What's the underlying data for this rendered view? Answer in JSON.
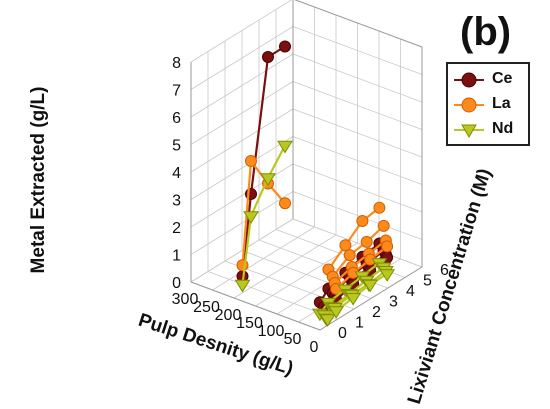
{
  "panel_label": "(b)",
  "chart_data": {
    "type": "scatter3d",
    "xlabel": "Pulp Desnity (g/L)",
    "ylabel": "Lixiviant Concentration (M)",
    "zlabel": "Metal Extracted (g/L)",
    "xlim": [
      0,
      300
    ],
    "ylim": [
      0,
      6
    ],
    "zlim": [
      0,
      8
    ],
    "xticks": [
      300,
      250,
      200,
      150,
      100,
      50,
      0
    ],
    "yticks": [
      0,
      1,
      2,
      3,
      4,
      5,
      6
    ],
    "zticks": [
      0,
      1,
      2,
      3,
      4,
      5,
      6,
      7,
      8
    ],
    "legend_position": "top-right",
    "series": [
      {
        "name": "Ce",
        "color": "#7a1010",
        "marker": "circle",
        "lines": [
          [
            [
              200,
              0.5,
              0.6
            ],
            [
              200,
              1,
              3.4
            ],
            [
              200,
              2,
              8.0
            ],
            [
              200,
              3,
              8.0
            ]
          ],
          [
            [
              20,
              0.5,
              0.7
            ],
            [
              20,
              1,
              1.0
            ],
            [
              20,
              2,
              1.2
            ],
            [
              20,
              3,
              1.4
            ],
            [
              20,
              4,
              1.5
            ]
          ],
          [
            [
              10,
              0.5,
              0.6
            ],
            [
              10,
              1,
              0.9
            ],
            [
              10,
              2,
              1.1
            ],
            [
              10,
              3,
              1.2
            ],
            [
              10,
              4,
              1.3
            ]
          ],
          [
            [
              5,
              0.5,
              0.5
            ],
            [
              5,
              1,
              0.8
            ],
            [
              5,
              2,
              1.0
            ],
            [
              5,
              3,
              1.1
            ],
            [
              5,
              4,
              1.2
            ]
          ],
          [
            [
              2,
              0.5,
              0.5
            ],
            [
              2,
              1,
              0.7
            ],
            [
              2,
              2,
              0.9
            ],
            [
              2,
              3,
              1.0
            ],
            [
              2,
              4,
              1.1
            ]
          ]
        ]
      },
      {
        "name": "La",
        "color": "#ff8a1c",
        "marker": "circle",
        "lines": [
          [
            [
              200,
              0.5,
              1.0
            ],
            [
              200,
              1,
              4.6
            ],
            [
              200,
              2,
              3.4
            ],
            [
              200,
              3,
              2.3
            ]
          ],
          [
            [
              20,
              1,
              1.7
            ],
            [
              20,
              2,
              2.2
            ],
            [
              20,
              3,
              2.7
            ],
            [
              20,
              4,
              2.8
            ]
          ],
          [
            [
              10,
              1,
              1.5
            ],
            [
              10,
              2,
              1.9
            ],
            [
              10,
              3,
              2.0
            ],
            [
              10,
              4,
              2.2
            ]
          ],
          [
            [
              5,
              1,
              1.3
            ],
            [
              5,
              2,
              1.5
            ],
            [
              5,
              3,
              1.6
            ],
            [
              5,
              4,
              1.7
            ]
          ],
          [
            [
              2,
              1,
              1.1
            ],
            [
              2,
              2,
              1.3
            ],
            [
              2,
              3,
              1.4
            ],
            [
              2,
              4,
              1.5
            ]
          ]
        ]
      },
      {
        "name": "Nd",
        "color": "#b8c820",
        "marker": "triangle-down",
        "lines": [
          [
            [
              200,
              0.5,
              0.3
            ],
            [
              200,
              1,
              2.6
            ],
            [
              200,
              2,
              3.6
            ],
            [
              200,
              3,
              4.4
            ]
          ],
          [
            [
              20,
              0.5,
              0.3
            ],
            [
              20,
              1,
              0.5
            ],
            [
              20,
              2,
              0.6
            ],
            [
              20,
              3,
              0.7
            ],
            [
              20,
              4,
              0.8
            ]
          ],
          [
            [
              10,
              0.5,
              0.3
            ],
            [
              10,
              1,
              0.4
            ],
            [
              10,
              2,
              0.5
            ],
            [
              10,
              3,
              0.6
            ],
            [
              10,
              4,
              0.7
            ]
          ],
          [
            [
              5,
              0.5,
              0.2
            ],
            [
              5,
              1,
              0.4
            ],
            [
              5,
              2,
              0.5
            ],
            [
              5,
              3,
              0.5
            ],
            [
              5,
              4,
              0.6
            ]
          ],
          [
            [
              2,
              0.5,
              0.2
            ],
            [
              2,
              1,
              0.3
            ],
            [
              2,
              2,
              0.4
            ],
            [
              2,
              3,
              0.5
            ],
            [
              2,
              4,
              0.5
            ]
          ]
        ]
      }
    ]
  }
}
